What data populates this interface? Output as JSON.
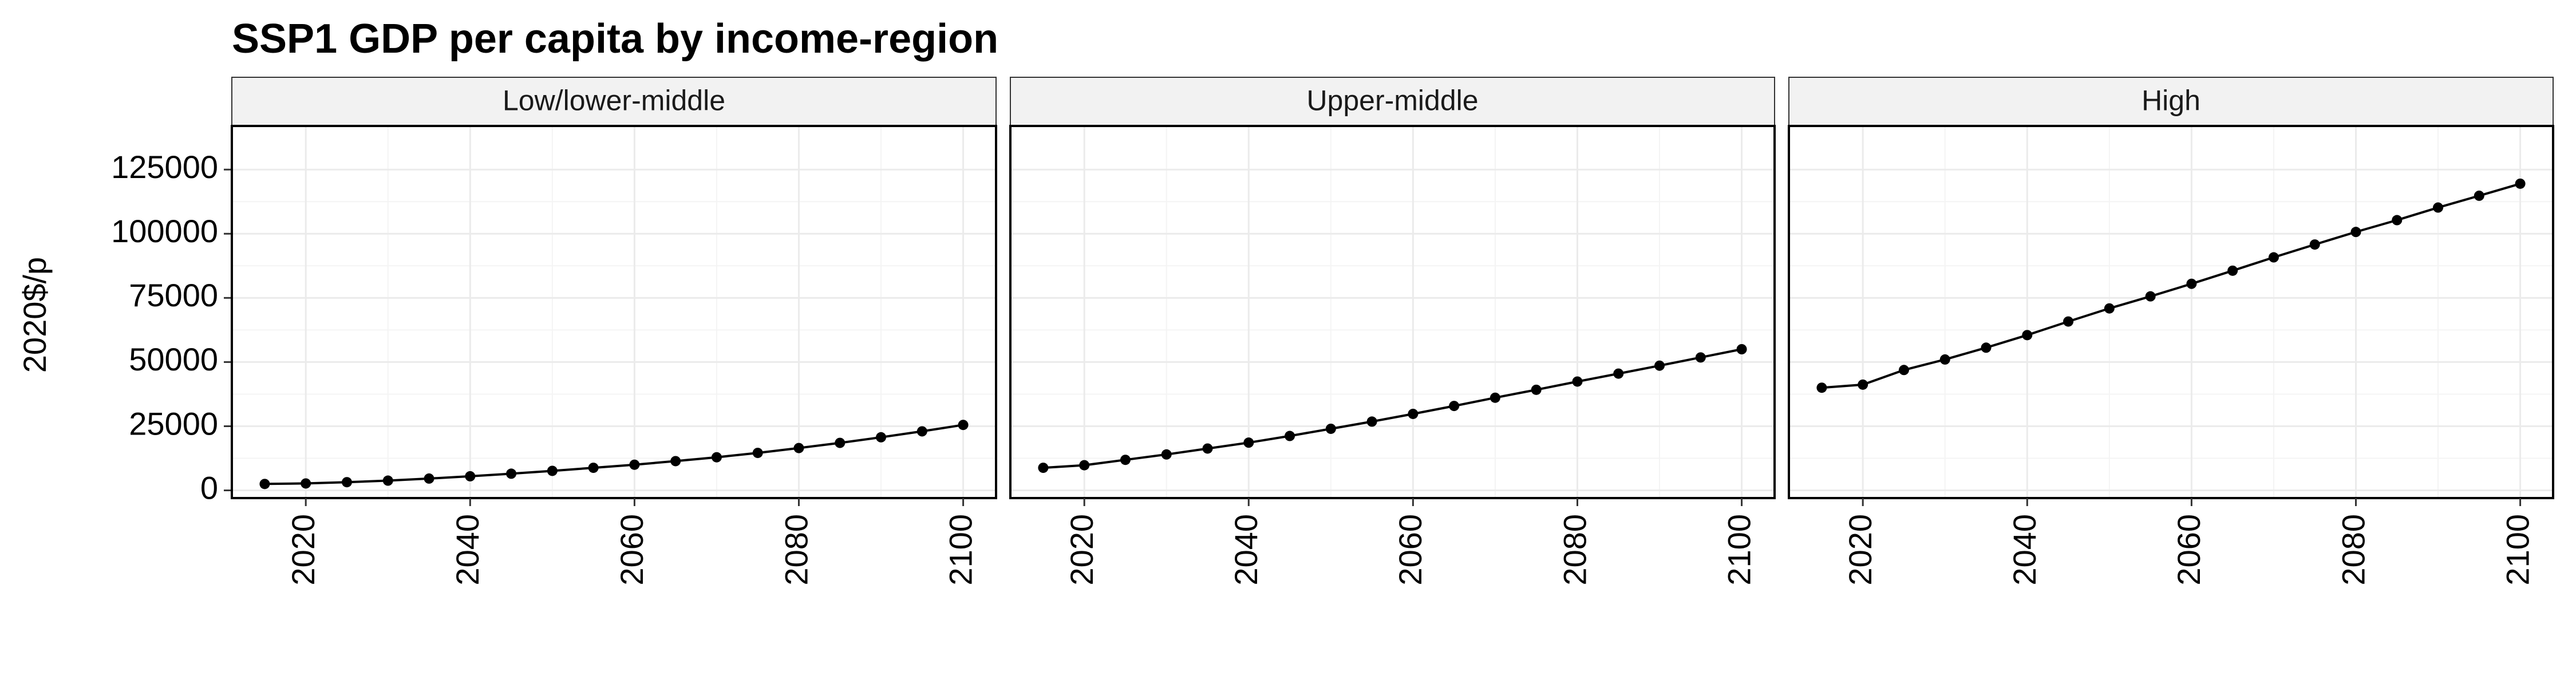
{
  "chart_data": {
    "type": "line",
    "title": "SSP1 GDP per capita by income-region",
    "xlabel": "",
    "ylabel": "2020$/p",
    "ylim": [
      -3000,
      142000
    ],
    "xlim": [
      2011,
      2104
    ],
    "x_ticks": [
      2020,
      2040,
      2060,
      2080,
      2100
    ],
    "y_ticks": [
      0,
      25000,
      50000,
      75000,
      100000,
      125000
    ],
    "y_tick_labels": [
      "0",
      "25000",
      "50000",
      "75000",
      "100000",
      "125000"
    ],
    "grid": true,
    "legend": "none",
    "x": [
      2015,
      2020,
      2025,
      2030,
      2035,
      2040,
      2045,
      2050,
      2055,
      2060,
      2065,
      2070,
      2075,
      2080,
      2085,
      2090,
      2095,
      2100
    ],
    "series": [
      {
        "name": "Low/lower-middle",
        "values": [
          2500,
          2700,
          3200,
          3800,
          4600,
          5500,
          6500,
          7600,
          8800,
          10000,
          11400,
          12900,
          14600,
          16500,
          18500,
          20700,
          23000,
          25500
        ]
      },
      {
        "name": "Upper-middle",
        "values": [
          8800,
          9800,
          11900,
          14000,
          16300,
          18600,
          21200,
          24000,
          26800,
          29800,
          32900,
          36100,
          39200,
          42400,
          45500,
          48600,
          51800,
          55000
        ]
      },
      {
        "name": "High",
        "values": [
          40000,
          41200,
          46900,
          51000,
          55600,
          60500,
          65800,
          70900,
          75600,
          80500,
          85600,
          90800,
          95800,
          100700,
          105300,
          110200,
          114800,
          119500
        ]
      }
    ],
    "colors": {
      "line": "#000000",
      "point": "#000000",
      "strip_fill": "#f2f2f2",
      "grid": "#ebebeb",
      "border": "#000000"
    }
  }
}
